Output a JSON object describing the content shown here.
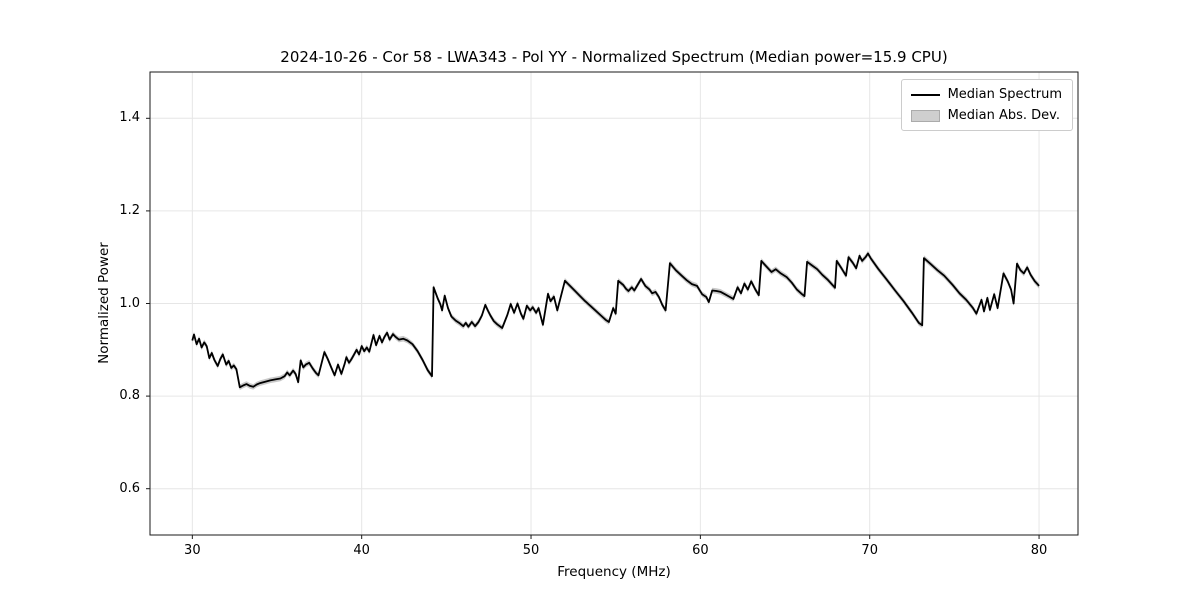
{
  "title": "2024-10-26 - Cor 58 - LWA343 - Pol YY - Normalized Spectrum (Median power=15.9 CPU)",
  "legend": {
    "items": [
      {
        "label": "Median Spectrum",
        "type": "line"
      },
      {
        "label": "Median Abs. Dev.",
        "type": "patch"
      }
    ]
  },
  "colors": {
    "line": "#000000",
    "band": "#c9c9c9",
    "grid": "#e6e6e6",
    "frame": "#1a1a1a",
    "background": "#ffffff"
  },
  "chart_data": {
    "type": "line",
    "title": "2024-10-26 - Cor 58 - LWA343 - Pol YY - Normalized Spectrum (Median power=15.9 CPU)",
    "xlabel": "Frequency (MHz)",
    "ylabel": "Normalized Power",
    "xlim": [
      27.5,
      82.3
    ],
    "ylim": [
      0.5,
      1.5
    ],
    "xticks": [
      30,
      40,
      50,
      60,
      70,
      80
    ],
    "yticks": [
      0.6,
      0.8,
      1.0,
      1.2,
      1.4
    ],
    "grid": true,
    "legend_position": "upper right",
    "series": [
      {
        "name": "Median Spectrum",
        "points": [
          [
            30.0,
            0.92
          ],
          [
            30.1,
            0.933
          ],
          [
            30.25,
            0.912
          ],
          [
            30.4,
            0.924
          ],
          [
            30.55,
            0.905
          ],
          [
            30.7,
            0.916
          ],
          [
            30.85,
            0.908
          ],
          [
            31.0,
            0.882
          ],
          [
            31.15,
            0.893
          ],
          [
            31.3,
            0.878
          ],
          [
            31.5,
            0.865
          ],
          [
            31.65,
            0.88
          ],
          [
            31.8,
            0.89
          ],
          [
            32.0,
            0.868
          ],
          [
            32.15,
            0.876
          ],
          [
            32.3,
            0.861
          ],
          [
            32.45,
            0.866
          ],
          [
            32.6,
            0.858
          ],
          [
            32.8,
            0.819
          ],
          [
            33.0,
            0.823
          ],
          [
            33.2,
            0.826
          ],
          [
            33.4,
            0.822
          ],
          [
            33.6,
            0.82
          ],
          [
            33.8,
            0.825
          ],
          [
            34.0,
            0.828
          ],
          [
            34.3,
            0.831
          ],
          [
            34.6,
            0.834
          ],
          [
            34.9,
            0.836
          ],
          [
            35.2,
            0.838
          ],
          [
            35.45,
            0.843
          ],
          [
            35.6,
            0.851
          ],
          [
            35.75,
            0.845
          ],
          [
            35.95,
            0.855
          ],
          [
            36.1,
            0.848
          ],
          [
            36.25,
            0.83
          ],
          [
            36.4,
            0.877
          ],
          [
            36.55,
            0.862
          ],
          [
            36.7,
            0.868
          ],
          [
            36.9,
            0.872
          ],
          [
            37.1,
            0.86
          ],
          [
            37.3,
            0.85
          ],
          [
            37.45,
            0.845
          ],
          [
            37.8,
            0.895
          ],
          [
            38.0,
            0.88
          ],
          [
            38.2,
            0.862
          ],
          [
            38.4,
            0.845
          ],
          [
            38.6,
            0.868
          ],
          [
            38.8,
            0.848
          ],
          [
            39.0,
            0.87
          ],
          [
            39.1,
            0.884
          ],
          [
            39.25,
            0.872
          ],
          [
            39.4,
            0.88
          ],
          [
            39.55,
            0.89
          ],
          [
            39.7,
            0.9
          ],
          [
            39.85,
            0.89
          ],
          [
            40.0,
            0.908
          ],
          [
            40.15,
            0.897
          ],
          [
            40.3,
            0.905
          ],
          [
            40.45,
            0.896
          ],
          [
            40.7,
            0.932
          ],
          [
            40.85,
            0.91
          ],
          [
            41.05,
            0.93
          ],
          [
            41.2,
            0.916
          ],
          [
            41.35,
            0.928
          ],
          [
            41.5,
            0.937
          ],
          [
            41.65,
            0.922
          ],
          [
            41.85,
            0.934
          ],
          [
            42.0,
            0.928
          ],
          [
            42.2,
            0.922
          ],
          [
            42.45,
            0.924
          ],
          [
            42.7,
            0.92
          ],
          [
            43.0,
            0.912
          ],
          [
            43.3,
            0.897
          ],
          [
            43.6,
            0.878
          ],
          [
            43.9,
            0.856
          ],
          [
            44.15,
            0.843
          ],
          [
            44.25,
            1.035
          ],
          [
            44.5,
            1.01
          ],
          [
            44.65,
            0.998
          ],
          [
            44.75,
            0.985
          ],
          [
            44.9,
            1.017
          ],
          [
            45.1,
            0.99
          ],
          [
            45.3,
            0.972
          ],
          [
            45.55,
            0.963
          ],
          [
            45.8,
            0.957
          ],
          [
            46.0,
            0.951
          ],
          [
            46.15,
            0.958
          ],
          [
            46.3,
            0.95
          ],
          [
            46.5,
            0.96
          ],
          [
            46.7,
            0.951
          ],
          [
            46.9,
            0.96
          ],
          [
            47.1,
            0.974
          ],
          [
            47.3,
            0.997
          ],
          [
            47.45,
            0.985
          ],
          [
            47.6,
            0.974
          ],
          [
            47.8,
            0.962
          ],
          [
            48.0,
            0.955
          ],
          [
            48.3,
            0.947
          ],
          [
            48.6,
            0.975
          ],
          [
            48.8,
            0.999
          ],
          [
            49.0,
            0.98
          ],
          [
            49.2,
            1.0
          ],
          [
            49.4,
            0.978
          ],
          [
            49.55,
            0.967
          ],
          [
            49.75,
            0.995
          ],
          [
            49.95,
            0.985
          ],
          [
            50.1,
            0.992
          ],
          [
            50.3,
            0.98
          ],
          [
            50.45,
            0.99
          ],
          [
            50.7,
            0.954
          ],
          [
            51.0,
            1.021
          ],
          [
            51.15,
            1.005
          ],
          [
            51.35,
            1.015
          ],
          [
            51.55,
            0.985
          ],
          [
            52.0,
            1.049
          ],
          [
            52.3,
            1.038
          ],
          [
            52.6,
            1.027
          ],
          [
            52.9,
            1.016
          ],
          [
            53.2,
            1.005
          ],
          [
            53.5,
            0.995
          ],
          [
            53.8,
            0.985
          ],
          [
            54.1,
            0.975
          ],
          [
            54.4,
            0.965
          ],
          [
            54.6,
            0.96
          ],
          [
            54.85,
            0.99
          ],
          [
            55.0,
            0.978
          ],
          [
            55.15,
            1.049
          ],
          [
            55.45,
            1.04
          ],
          [
            55.6,
            1.032
          ],
          [
            55.75,
            1.027
          ],
          [
            55.95,
            1.035
          ],
          [
            56.1,
            1.028
          ],
          [
            56.5,
            1.053
          ],
          [
            56.75,
            1.038
          ],
          [
            57.0,
            1.03
          ],
          [
            57.15,
            1.022
          ],
          [
            57.35,
            1.025
          ],
          [
            57.55,
            1.014
          ],
          [
            57.75,
            0.997
          ],
          [
            57.95,
            0.985
          ],
          [
            58.2,
            1.087
          ],
          [
            58.55,
            1.072
          ],
          [
            58.9,
            1.06
          ],
          [
            59.2,
            1.05
          ],
          [
            59.5,
            1.042
          ],
          [
            59.8,
            1.038
          ],
          [
            60.1,
            1.02
          ],
          [
            60.35,
            1.014
          ],
          [
            60.5,
            1.003
          ],
          [
            60.7,
            1.028
          ],
          [
            60.95,
            1.027
          ],
          [
            61.2,
            1.025
          ],
          [
            61.45,
            1.02
          ],
          [
            61.7,
            1.015
          ],
          [
            61.95,
            1.01
          ],
          [
            62.2,
            1.035
          ],
          [
            62.4,
            1.022
          ],
          [
            62.6,
            1.043
          ],
          [
            62.8,
            1.03
          ],
          [
            63.0,
            1.048
          ],
          [
            63.25,
            1.03
          ],
          [
            63.45,
            1.018
          ],
          [
            63.6,
            1.092
          ],
          [
            63.9,
            1.08
          ],
          [
            64.2,
            1.068
          ],
          [
            64.45,
            1.074
          ],
          [
            64.75,
            1.065
          ],
          [
            65.1,
            1.057
          ],
          [
            65.4,
            1.045
          ],
          [
            65.7,
            1.03
          ],
          [
            66.0,
            1.02
          ],
          [
            66.15,
            1.016
          ],
          [
            66.3,
            1.09
          ],
          [
            66.6,
            1.082
          ],
          [
            66.9,
            1.074
          ],
          [
            67.2,
            1.062
          ],
          [
            67.5,
            1.052
          ],
          [
            67.8,
            1.04
          ],
          [
            67.95,
            1.034
          ],
          [
            68.05,
            1.092
          ],
          [
            68.35,
            1.075
          ],
          [
            68.6,
            1.06
          ],
          [
            68.75,
            1.1
          ],
          [
            69.0,
            1.088
          ],
          [
            69.2,
            1.076
          ],
          [
            69.4,
            1.103
          ],
          [
            69.55,
            1.092
          ],
          [
            69.75,
            1.1
          ],
          [
            69.9,
            1.108
          ],
          [
            70.05,
            1.098
          ],
          [
            70.5,
            1.075
          ],
          [
            71.0,
            1.052
          ],
          [
            71.5,
            1.028
          ],
          [
            72.0,
            1.005
          ],
          [
            72.5,
            0.98
          ],
          [
            72.9,
            0.958
          ],
          [
            73.1,
            0.953
          ],
          [
            73.2,
            1.098
          ],
          [
            73.6,
            1.085
          ],
          [
            74.0,
            1.072
          ],
          [
            74.4,
            1.06
          ],
          [
            74.9,
            1.04
          ],
          [
            75.3,
            1.022
          ],
          [
            75.7,
            1.008
          ],
          [
            76.1,
            0.99
          ],
          [
            76.3,
            0.978
          ],
          [
            76.6,
            1.008
          ],
          [
            76.75,
            0.983
          ],
          [
            76.95,
            1.012
          ],
          [
            77.1,
            0.986
          ],
          [
            77.35,
            1.02
          ],
          [
            77.55,
            0.99
          ],
          [
            77.9,
            1.065
          ],
          [
            78.15,
            1.048
          ],
          [
            78.35,
            1.03
          ],
          [
            78.5,
            1.0
          ],
          [
            78.7,
            1.086
          ],
          [
            78.9,
            1.072
          ],
          [
            79.1,
            1.065
          ],
          [
            79.3,
            1.078
          ],
          [
            79.5,
            1.062
          ],
          [
            79.75,
            1.048
          ],
          [
            80.0,
            1.038
          ]
        ]
      }
    ],
    "band_series": {
      "name": "Median Abs. Dev.",
      "half_width": 0.006
    }
  }
}
